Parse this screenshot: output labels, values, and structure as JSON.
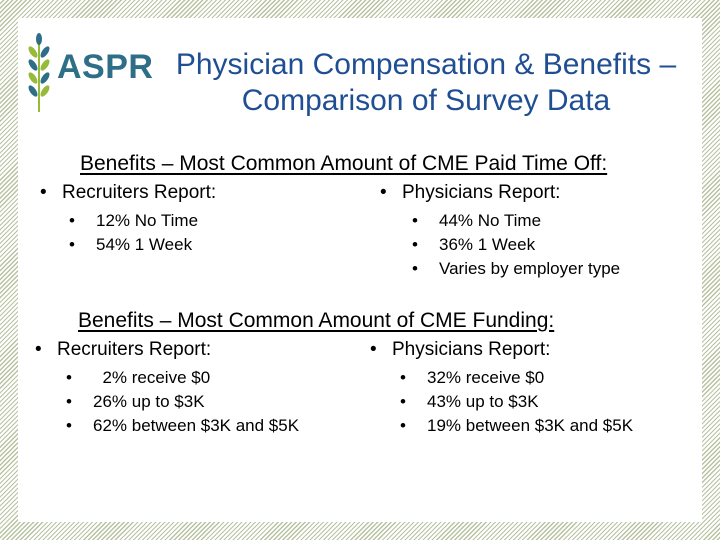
{
  "logo": {
    "text": "ASPR",
    "icon": "wheat-icon",
    "color": "#2e6f87",
    "leaf_color": "#97ba3a"
  },
  "title": {
    "line1": "Physician Compensation & Benefits –",
    "line2": "Comparison of Survey Data",
    "color": "#1f4e93"
  },
  "border_color": "#b7c2a0",
  "section1": {
    "heading": "Benefits – Most Common Amount of CME Paid Time Off:",
    "recruiters": {
      "label": "Recruiters Report:",
      "items": [
        "12%  No Time",
        "54%  1 Week"
      ]
    },
    "physicians": {
      "label": "Physicians Report:",
      "items": [
        "44%  No Time",
        "36%  1 Week",
        "Varies by employer type"
      ]
    }
  },
  "section2": {
    "heading": "Benefits – Most Common Amount of CME Funding:",
    "recruiters": {
      "label": "Recruiters Report:",
      "items": [
        "  2% receive $0",
        "26% up to $3K",
        "62% between $3K and $5K"
      ]
    },
    "physicians": {
      "label": "Physicians Report:",
      "items": [
        "32% receive $0",
        "43% up to $3K",
        "19% between $3K and $5K"
      ]
    }
  }
}
